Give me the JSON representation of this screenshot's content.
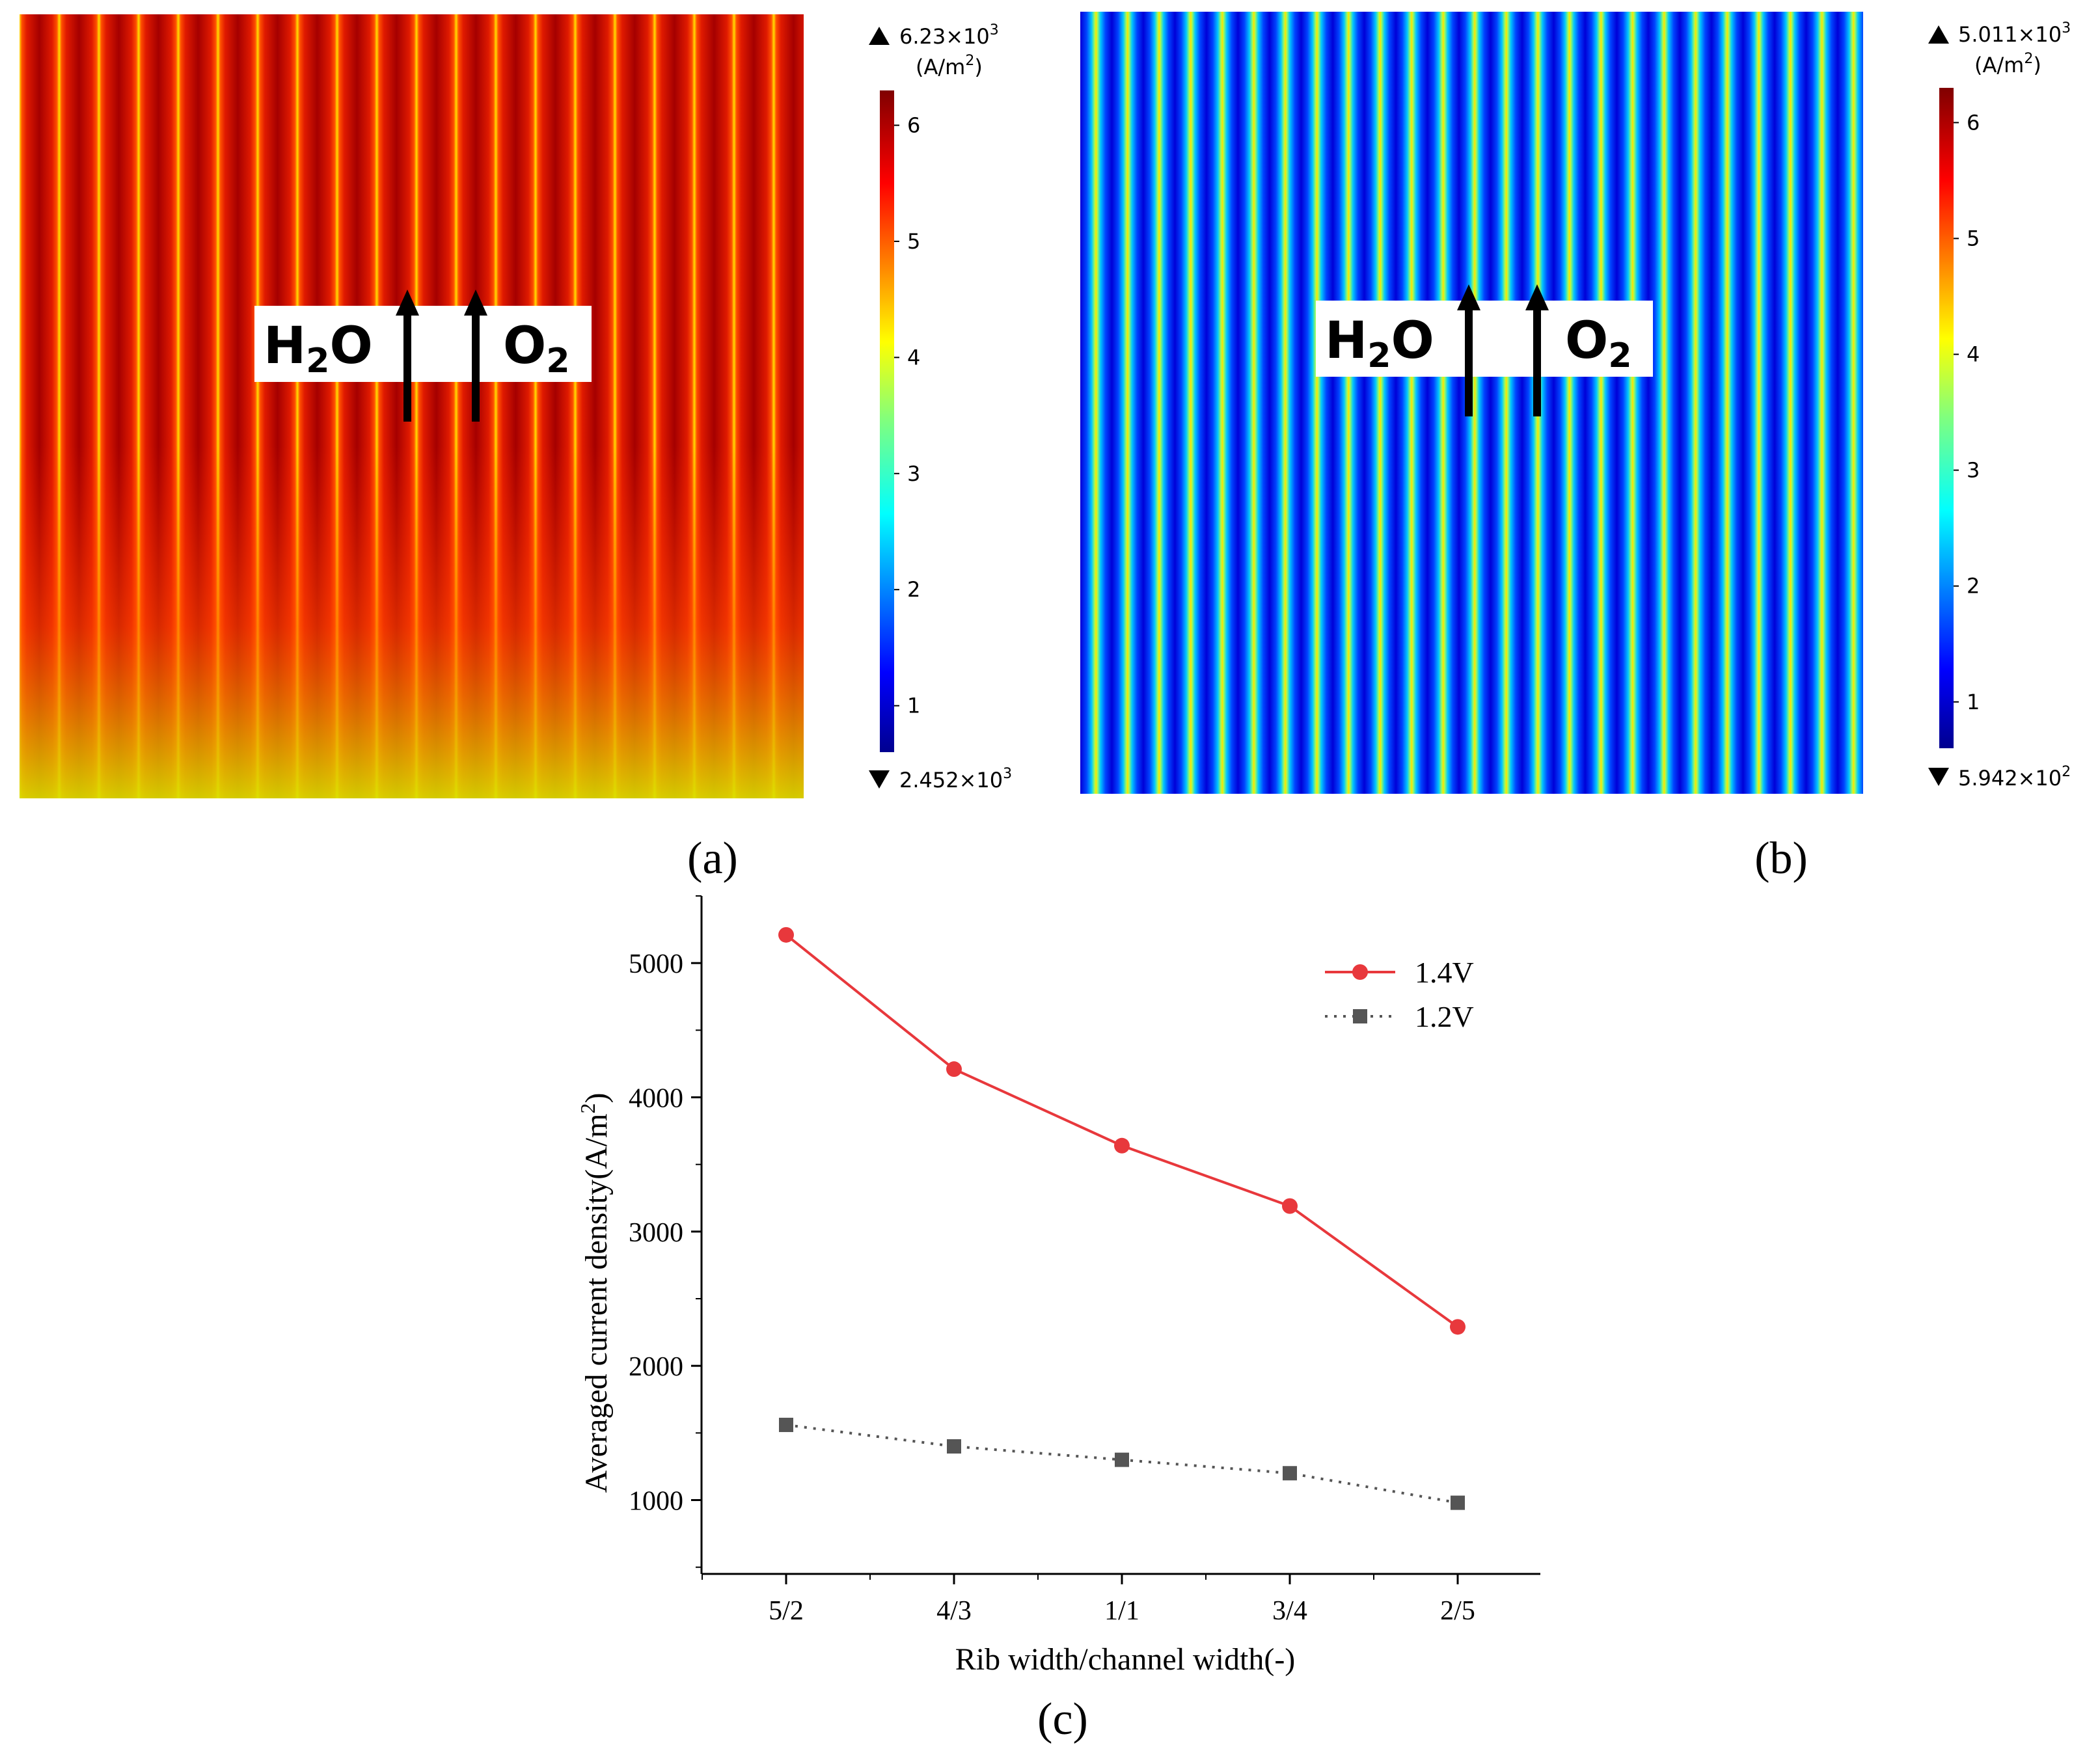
{
  "panels": {
    "a": {
      "label": "(a)",
      "species": [
        "H",
        "2",
        "O",
        "O",
        "2"
      ],
      "colorbar": {
        "max_prefix": "6.23×10",
        "max_exp": "3",
        "unit_prefix": "(A/m",
        "unit_exp": "2",
        "unit_suffix": ")",
        "min_prefix": "2.452×10",
        "min_exp": "3",
        "ticks": [
          "1",
          "2",
          "3",
          "4",
          "5",
          "6"
        ],
        "tick_values": [
          1,
          2,
          3,
          4,
          5,
          6
        ],
        "range": [
          0.6,
          6.3
        ]
      }
    },
    "b": {
      "label": "(b)",
      "species": [
        "H",
        "2",
        "O",
        "O",
        "2"
      ],
      "colorbar": {
        "max_prefix": "5.011×10",
        "max_exp": "3",
        "unit_prefix": "(A/m",
        "unit_exp": "2",
        "unit_suffix": ")",
        "min_prefix": "5.942×10",
        "min_exp": "2",
        "ticks": [
          "1",
          "2",
          "3",
          "4",
          "5",
          "6"
        ],
        "tick_values": [
          1,
          2,
          3,
          4,
          5,
          6
        ],
        "range": [
          0.6,
          6.3
        ]
      }
    },
    "c": {
      "label": "(c)"
    }
  },
  "colors": {
    "red_series": "#e8383c",
    "gray_series": "#555555",
    "axis": "#000000"
  },
  "chart_data": {
    "type": "line",
    "categories": [
      "5/2",
      "4/3",
      "1/1",
      "3/4",
      "2/5"
    ],
    "series": [
      {
        "name": "1.4V",
        "values": [
          5210,
          4210,
          3640,
          3190,
          2290
        ],
        "marker": "circle",
        "style": "solid"
      },
      {
        "name": "1.2V",
        "values": [
          1560,
          1400,
          1300,
          1200,
          980
        ],
        "marker": "square",
        "style": "dotted"
      }
    ],
    "xlabel": "Rib width/channel width(-)",
    "ylabel_prefix": "Averaged current density(A/m",
    "ylabel_exp": "2",
    "ylabel_suffix": ")",
    "yticks": [
      "1000",
      "2000",
      "3000",
      "4000",
      "5000"
    ],
    "ytick_values": [
      1000,
      2000,
      3000,
      4000,
      5000
    ],
    "ylim": [
      450,
      5500
    ],
    "legend_position": "top-right"
  }
}
